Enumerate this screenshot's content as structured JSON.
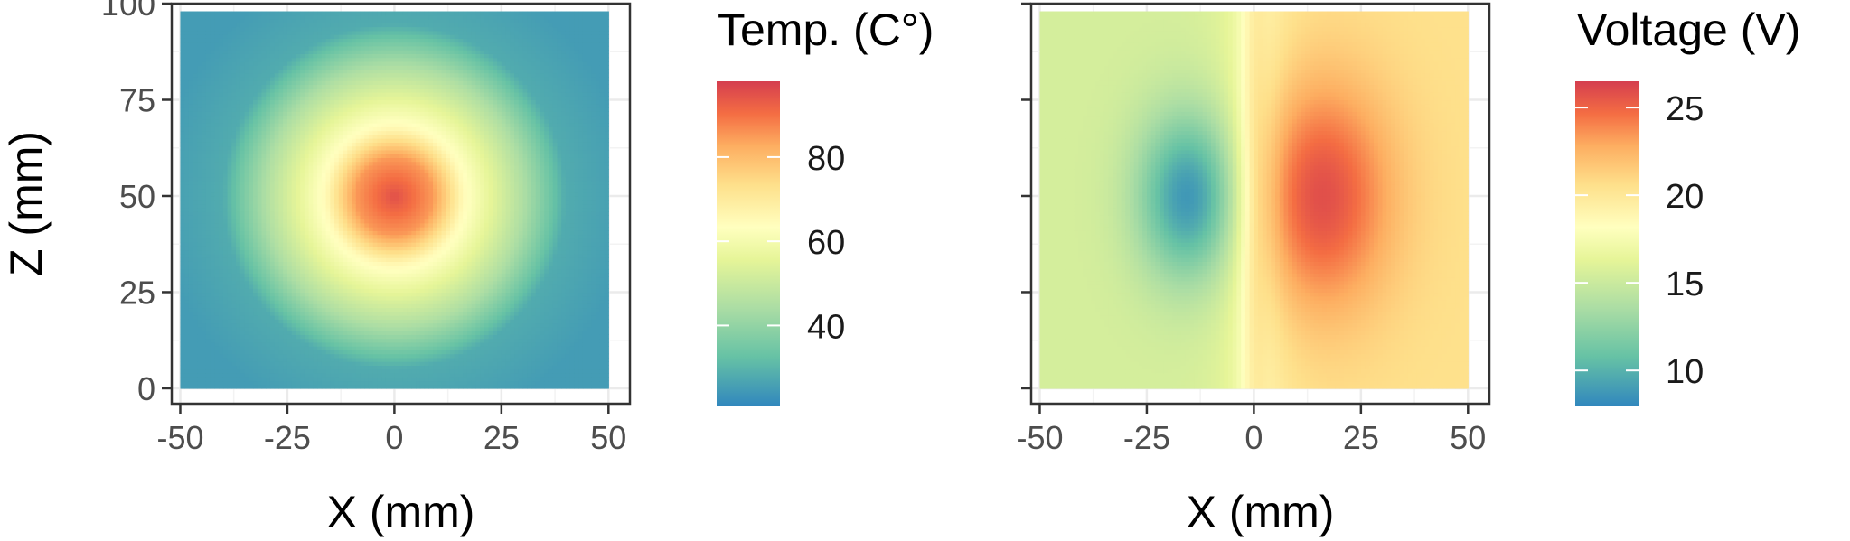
{
  "chart_data": [
    {
      "type": "heatmap",
      "xlabel": "X (mm)",
      "ylabel": "Z (mm)",
      "xlim": [
        -52,
        55
      ],
      "ylim": [
        -4,
        100
      ],
      "xticks": [
        -50,
        -25,
        0,
        25,
        50
      ],
      "xtick_labels": [
        "-50",
        "-25",
        "0",
        "25",
        "50"
      ],
      "yticks": [
        0,
        25,
        50,
        75,
        100
      ],
      "ytick_labels": [
        "0",
        "25",
        "50",
        "75",
        "100"
      ],
      "grid": true,
      "colorscale": "Spectral (reversed)",
      "colorbar": {
        "title": "Temp. (C°)",
        "range": [
          21,
          98
        ],
        "ticks": [
          40,
          60,
          80
        ],
        "tick_labels": [
          "40",
          "60",
          "80"
        ],
        "placement": "right"
      },
      "field": {
        "region_x": [
          -50,
          50
        ],
        "region_z": [
          0,
          98
        ],
        "background": 25,
        "hotspot": {
          "x": 0,
          "z": 50,
          "value": 95
        },
        "contour_levels": [
          {
            "value": 85,
            "half_width_x": 9,
            "half_width_z": 12
          },
          {
            "value": 65,
            "half_width_x": 16,
            "half_width_z": 19
          },
          {
            "value": 45,
            "half_width_x": 30,
            "half_width_z": 31
          }
        ]
      }
    },
    {
      "type": "heatmap",
      "xlabel": "X (mm)",
      "ylabel": "",
      "xlim": [
        -52,
        55
      ],
      "ylim": [
        -4,
        100
      ],
      "xticks": [
        -50,
        -25,
        0,
        25,
        50
      ],
      "xtick_labels": [
        "-50",
        "-25",
        "0",
        "25",
        "50"
      ],
      "yticks": [
        0,
        25,
        50,
        75,
        100
      ],
      "ytick_labels": [],
      "grid": true,
      "colorscale": "Spectral (reversed)",
      "colorbar": {
        "title": "Voltage (V)",
        "range": [
          8,
          26.5
        ],
        "ticks": [
          10,
          15,
          20,
          25
        ],
        "tick_labels": [
          "10",
          "15",
          "20",
          "25"
        ],
        "placement": "right"
      },
      "field": {
        "region_x": [
          -50,
          50
        ],
        "region_z": [
          0,
          98
        ],
        "left_background": 15.5,
        "right_background": 20.5,
        "minimum": {
          "x": -15,
          "z": 50,
          "value": 8.5
        },
        "maximum": {
          "x": 15,
          "z": 50,
          "value": 26
        }
      }
    }
  ]
}
